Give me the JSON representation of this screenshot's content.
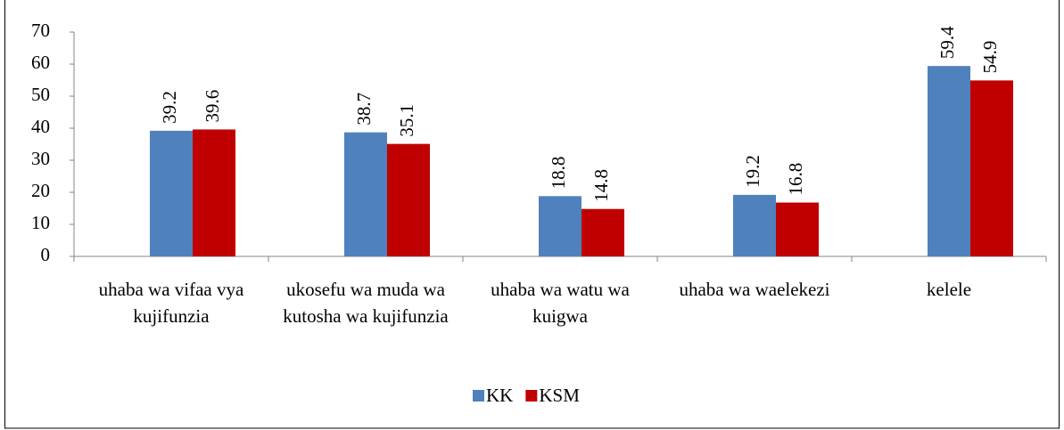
{
  "chart_data": {
    "type": "bar",
    "categories": [
      "uhaba wa vifaa vya kujifunzia",
      "ukosefu wa muda wa kutosha wa kujifunzia",
      "uhaba wa watu wa kuigwa",
      "uhaba wa waelekezi",
      "kelele"
    ],
    "series": [
      {
        "name": "KK",
        "color": "#4f81bd",
        "values": [
          39.2,
          38.7,
          18.8,
          19.2,
          59.4
        ]
      },
      {
        "name": "KSM",
        "color": "#c00000",
        "values": [
          39.6,
          35.1,
          14.8,
          16.8,
          54.9
        ]
      }
    ],
    "ylim": [
      0,
      70
    ],
    "yticks": [
      0,
      10,
      20,
      30,
      40,
      50,
      60,
      70
    ],
    "grid": false,
    "legend": "bottom"
  }
}
